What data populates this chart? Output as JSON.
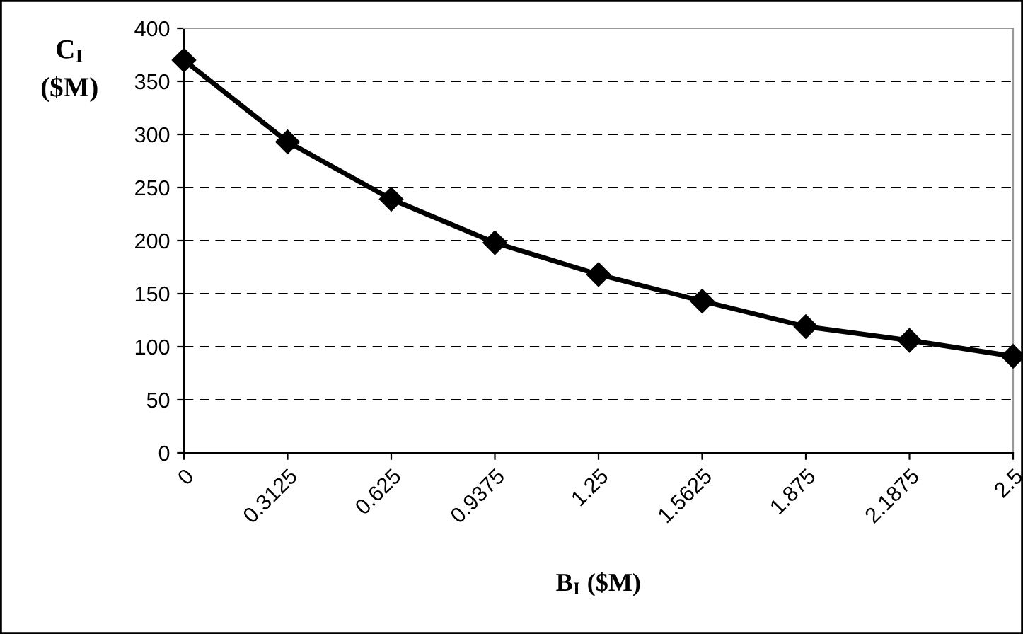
{
  "chart_data": {
    "type": "line",
    "xlabel": "B$_{I}$ ($M)",
    "ylabel": "C$_{I}$\n($M)",
    "x": [
      0,
      0.3125,
      0.625,
      0.9375,
      1.25,
      1.5625,
      1.875,
      2.1875,
      2.5
    ],
    "series": [
      {
        "color": "#000000",
        "values": [
          370,
          293,
          239,
          198,
          168,
          143,
          119,
          106,
          91
        ]
      }
    ],
    "xlim": [
      0,
      2.5
    ],
    "xticks": [
      0,
      0.3125,
      0.625,
      0.9375,
      1.25,
      1.5625,
      1.875,
      2.1875,
      2.5
    ],
    "ylim": [
      0,
      400
    ],
    "yticks": [
      0,
      50,
      100,
      150,
      200,
      250,
      300,
      350,
      400
    ],
    "grid": "y",
    "marker": "diamond",
    "line_style": "solid"
  }
}
